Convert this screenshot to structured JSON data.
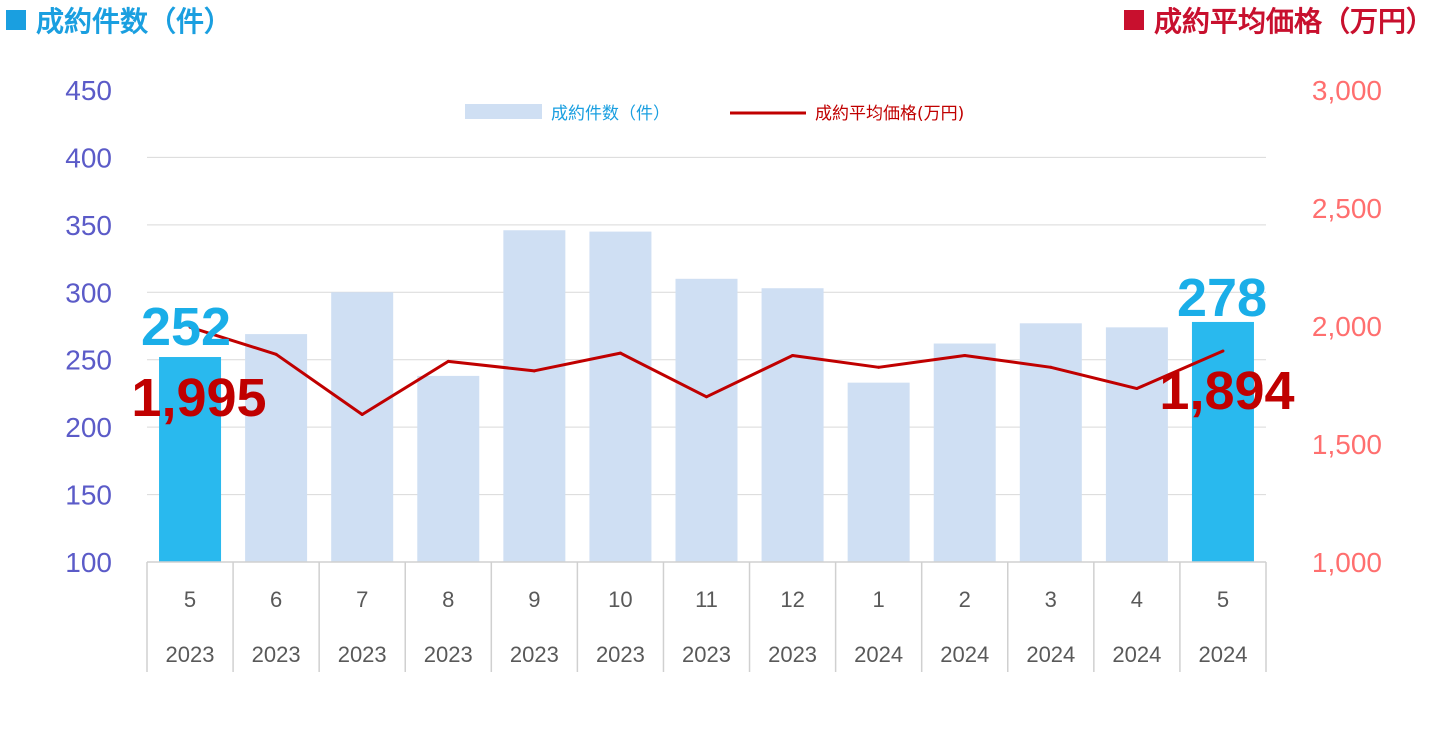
{
  "header": {
    "left_title": "成約件数（件）",
    "right_title": "成約平均価格（万円）"
  },
  "legend": {
    "bars_label": "成約件数（件）",
    "line_label": "成約平均価格(万円)"
  },
  "colors": {
    "highlight_bar": "#29b9ee",
    "normal_bar": "#cfdff3",
    "line": "#c00000",
    "left_axis": "#5b5bc8",
    "right_axis": "#ff6f6f",
    "left_title": "#1a9fe0",
    "right_title": "#c8102e",
    "big_count": "#1aaee8",
    "big_price": "#c00000"
  },
  "annotations": {
    "first_count": "252",
    "first_price": "1,995",
    "last_count": "278",
    "last_price": "1,894"
  },
  "chart_data": {
    "type": "bar",
    "categories": [
      {
        "month": "5",
        "year": "2023"
      },
      {
        "month": "6",
        "year": "2023"
      },
      {
        "month": "7",
        "year": "2023"
      },
      {
        "month": "8",
        "year": "2023"
      },
      {
        "month": "9",
        "year": "2023"
      },
      {
        "month": "10",
        "year": "2023"
      },
      {
        "month": "11",
        "year": "2023"
      },
      {
        "month": "12",
        "year": "2023"
      },
      {
        "month": "1",
        "year": "2024"
      },
      {
        "month": "2",
        "year": "2024"
      },
      {
        "month": "3",
        "year": "2024"
      },
      {
        "month": "4",
        "year": "2024"
      },
      {
        "month": "5",
        "year": "2024"
      }
    ],
    "series": [
      {
        "name": "成約件数（件）",
        "type": "bar",
        "axis": "left",
        "values": [
          252,
          269,
          300,
          238,
          346,
          345,
          310,
          303,
          233,
          262,
          277,
          274,
          278
        ],
        "highlight": [
          true,
          false,
          false,
          false,
          false,
          false,
          false,
          false,
          false,
          false,
          false,
          false,
          true
        ]
      },
      {
        "name": "成約平均価格(万円)",
        "type": "line",
        "axis": "right",
        "values": [
          1995,
          1880,
          1625,
          1850,
          1810,
          1885,
          1700,
          1875,
          1825,
          1875,
          1825,
          1735,
          1894
        ]
      }
    ],
    "y_left": {
      "min": 100,
      "max": 450,
      "ticks": [
        "450",
        "400",
        "350",
        "300",
        "250",
        "200",
        "150",
        "100"
      ]
    },
    "y_right": {
      "min": 1000,
      "max": 3000,
      "ticks": [
        "3,000",
        "2,500",
        "2,000",
        "1,500",
        "1,000"
      ]
    },
    "grid": true,
    "legend_position": "top"
  }
}
